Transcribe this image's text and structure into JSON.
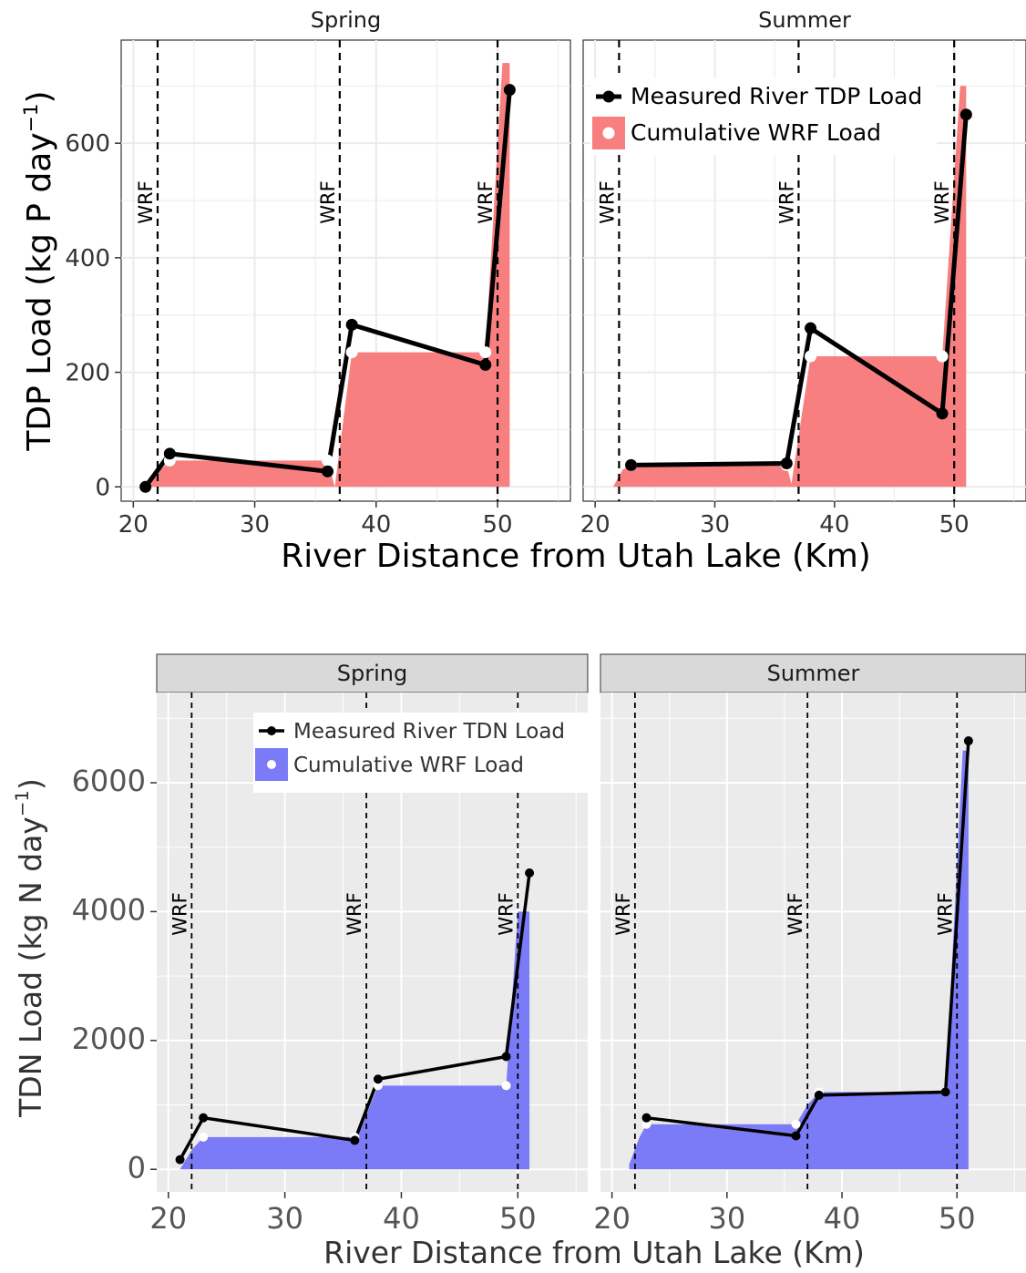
{
  "chart_data": [
    {
      "type": "line",
      "facets": [
        "Spring",
        "Summer"
      ],
      "xlabel": "River Distance from Utah Lake (Km)",
      "ylabel": "TDP Load (kg P day",
      "ylabel_sup": "−1",
      "ylabel_close": ")",
      "xlim": [
        19,
        56
      ],
      "ylim": [
        -25,
        780
      ],
      "xticks": [
        20,
        30,
        40,
        50
      ],
      "yticks": [
        0,
        200,
        400,
        600
      ],
      "wrf_label": "WRF",
      "wrf_locations": [
        22,
        37,
        50
      ],
      "fill_color": "#f87f7f",
      "strip_background": "#ffffff",
      "legend": {
        "panel": 1,
        "entries": [
          {
            "label": "Measured River TDP Load",
            "kind": "line"
          },
          {
            "label": "Cumulative WRF Load",
            "kind": "fill"
          }
        ]
      },
      "series": [
        {
          "facet": "Spring",
          "measured": {
            "x": [
              21,
              23,
              36,
              38,
              49,
              51
            ],
            "y": [
              0,
              58,
              27,
              283,
              213,
              693
            ]
          },
          "wrf_points": {
            "x": [
              21,
              23,
              36,
              38,
              49
            ],
            "y": [
              0,
              46,
              46,
              235,
              235
            ]
          },
          "cumulative": {
            "x": [
              21,
              22,
              23,
              36,
              36.6,
              38,
              49,
              50.4,
              51
            ],
            "y": [
              0,
              25,
              46,
              46,
              0,
              235,
              235,
              740,
              740
            ]
          }
        },
        {
          "facet": "Summer",
          "measured": {
            "x": [
              23,
              36,
              38,
              49,
              51
            ],
            "y": [
              38,
              41,
              277,
              128,
              650
            ]
          },
          "wrf_points": {
            "x": [
              23,
              36,
              38,
              49
            ],
            "y": [
              38,
              38,
              228,
              228
            ]
          },
          "cumulative": {
            "x": [
              21.5,
              22.3,
              23,
              36,
              36.4,
              38,
              49,
              50.5,
              51
            ],
            "y": [
              0,
              30,
              38,
              38,
              5,
              228,
              228,
              700,
              700
            ]
          }
        }
      ]
    },
    {
      "type": "line",
      "facets": [
        "Spring",
        "Summer"
      ],
      "xlabel": "River Distance from Utah Lake (Km)",
      "ylabel": "TDN Load (kg N day",
      "ylabel_sup": "−1",
      "ylabel_close": ")",
      "xlim": [
        19,
        56
      ],
      "ylim": [
        -350,
        7400
      ],
      "xticks": [
        20,
        30,
        40,
        50
      ],
      "yticks": [
        0,
        2000,
        4000,
        6000
      ],
      "wrf_label": "WRF",
      "wrf_locations": [
        22,
        37,
        50
      ],
      "fill_color": "#7b7bf7",
      "strip_background": "#d9d9d9",
      "legend": {
        "panel": 0,
        "entries": [
          {
            "label": "Measured River TDN Load",
            "kind": "line"
          },
          {
            "label": "Cumulative WRF Load",
            "kind": "fill"
          }
        ]
      },
      "series": [
        {
          "facet": "Spring",
          "measured": {
            "x": [
              21,
              23,
              36,
              38,
              49,
              51
            ],
            "y": [
              150,
              800,
              450,
              1400,
              1750,
              4600
            ]
          },
          "wrf_points": {
            "x": [
              21,
              23,
              36,
              38,
              49
            ],
            "y": [
              150,
              500,
              500,
              1300,
              1300
            ]
          },
          "cumulative": {
            "x": [
              21,
              22,
              23,
              36,
              37,
              38,
              49,
              50,
              51
            ],
            "y": [
              0,
              300,
              500,
              500,
              850,
              1300,
              1300,
              4000,
              4000
            ]
          }
        },
        {
          "facet": "Summer",
          "measured": {
            "x": [
              23,
              36,
              38,
              49,
              51
            ],
            "y": [
              800,
              520,
              1150,
              1200,
              6650
            ]
          },
          "wrf_points": {
            "x": [
              23,
              36,
              38,
              49
            ],
            "y": [
              700,
              700,
              1200,
              1200
            ]
          },
          "cumulative": {
            "x": [
              21.5,
              22.4,
              23,
              36,
              37,
              38,
              49,
              50.5,
              51
            ],
            "y": [
              80,
              500,
              700,
              700,
              1000,
              1200,
              1200,
              6500,
              6500
            ]
          }
        }
      ]
    }
  ]
}
